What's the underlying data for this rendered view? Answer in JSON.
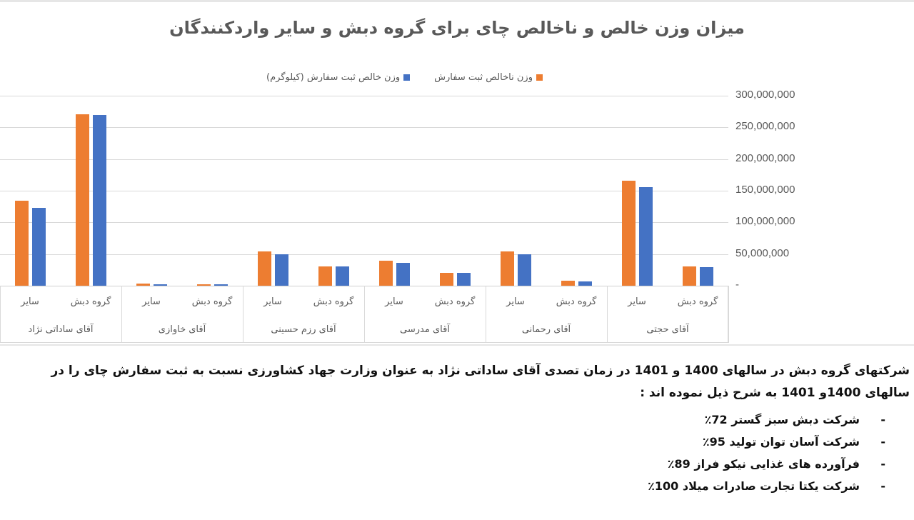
{
  "chart_data": {
    "type": "bar",
    "title": "میزان وزن خالص و ناخالص چای برای گروه دبش و سایر واردکنندگان",
    "xlabel": "",
    "ylabel": "",
    "ylim": [
      0,
      300000000
    ],
    "yticks": [
      "300,000,000",
      "250,000,000",
      "200,000,000",
      "150,000,000",
      "100,000,000",
      "50,000,000",
      "-"
    ],
    "grid": true,
    "legend_position": "top",
    "orientation": "rtl-categories-right-to-left",
    "groups": [
      "آقای ساداتی نژاد",
      "آقای خاوازی",
      "آقای رزم حسینی",
      "آقای مدرسی",
      "آقای رحمانی",
      "آقای حجتی"
    ],
    "subcategories": [
      "گروه دبش",
      "سایر"
    ],
    "categories": [
      "آقای حجتی - گروه دبش",
      "آقای حجتی - سایر",
      "آقای رحمانی - گروه دبش",
      "آقای رحمانی - سایر",
      "آقای مدرسی - گروه دبش",
      "آقای مدرسی - سایر",
      "آقای رزم حسینی - گروه دبش",
      "آقای رزم حسینی - سایر",
      "آقای خاوازی - گروه دبش",
      "آقای خاوازی - سایر",
      "آقای ساداتی نژاد - گروه دبش",
      "آقای ساداتی نژاد - سایر"
    ],
    "series": [
      {
        "name": "وزن ناخالص ثبت سفارش",
        "color": "#ED7D31",
        "values": [
          31000000,
          166000000,
          8000000,
          54000000,
          20000000,
          39000000,
          31000000,
          54000000,
          1500000,
          3000000,
          271000000,
          134000000
        ]
      },
      {
        "name": "وزن خالص ثبت سفارش (کیلوگرم)",
        "color": "#4472C4",
        "values": [
          29000000,
          156000000,
          7000000,
          50000000,
          20000000,
          36000000,
          30000000,
          50000000,
          1200000,
          2500000,
          270000000,
          123000000
        ]
      }
    ]
  },
  "chart": {
    "title": "میزان وزن خالص و ناخالص چای برای گروه دبش و سایر واردکنندگان",
    "legend": [
      {
        "label": "وزن ناخالص ثبت سفارش",
        "color": "#ED7D31"
      },
      {
        "label": "وزن خالص ثبت سفارش (کیلوگرم)",
        "color": "#4472C4"
      }
    ],
    "yticks": [
      "300,000,000",
      "250,000,000",
      "200,000,000",
      "150,000,000",
      "100,000,000",
      "50,000,000",
      "-"
    ],
    "sub_labels": {
      "dabsh": "گروه دبش",
      "other": "سایر"
    },
    "groups": [
      {
        "label": "آقای ساداتی نژاد"
      },
      {
        "label": "آقای خاوازی"
      },
      {
        "label": "آقای رزم حسینی"
      },
      {
        "label": "آقای مدرسی"
      },
      {
        "label": "آقای رحمانی"
      },
      {
        "label": "آقای حجتی"
      }
    ]
  },
  "text": {
    "paragraph": "شرکتهای گروه دبش  در سالهای 1400 و 1401  در زمان تصدی آقای ساداتی نژاد به عنوان وزارت جهاد کشاورزی نسبت به ثبت سفارش چای را در سالهای 1400و 1401  به شرح ذیل نموده اند :",
    "bullets": [
      {
        "dash": "-",
        "label": "شرکت دبش سبز گستر 72٪"
      },
      {
        "dash": "-",
        "label": "شرکت آسان توان تولید 95٪"
      },
      {
        "dash": "-",
        "label": "فرآورده های غذایی نیکو فراز  89٪"
      },
      {
        "dash": "-",
        "label": "شرکت یکتا تجارت صادرات میلاد 100٪"
      }
    ]
  }
}
